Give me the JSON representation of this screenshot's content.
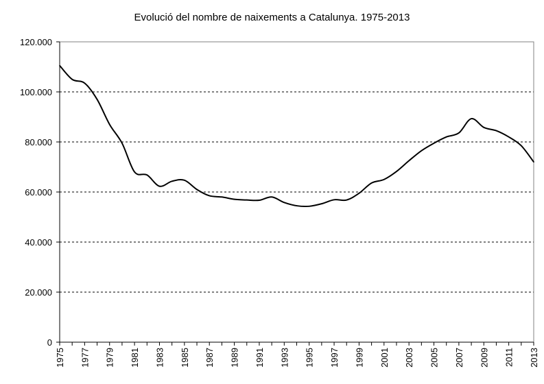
{
  "chart_data": {
    "type": "line",
    "title": "Evolució del nombre de naixements a Catalunya. 1975-2013",
    "xlabel": "",
    "ylabel": "",
    "ylim": [
      0,
      120000
    ],
    "y_ticks": [
      0,
      20000,
      40000,
      60000,
      80000,
      100000,
      120000
    ],
    "y_tick_labels": [
      "0",
      "20.000",
      "40.000",
      "60.000",
      "80.000",
      "100.000",
      "120.000"
    ],
    "x_tick_labels": [
      "1975",
      "1977",
      "1979",
      "1981",
      "1983",
      "1985",
      "1987",
      "1989",
      "1991",
      "1993",
      "1995",
      "1997",
      "1999",
      "2001",
      "2003",
      "2005",
      "2007",
      "2009",
      "2011",
      "2013"
    ],
    "grid": "horizontal dashed",
    "line_color": "#000000",
    "series": [
      {
        "x": [
          1975,
          1976,
          1977,
          1978,
          1979,
          1980,
          1981,
          1982,
          1983,
          1984,
          1985,
          1986,
          1987,
          1988,
          1989,
          1990,
          1991,
          1992,
          1993,
          1994,
          1995,
          1996,
          1997,
          1998,
          1999,
          2000,
          2001,
          2002,
          2003,
          2004,
          2005,
          2006,
          2007,
          2008,
          2009,
          2010,
          2011,
          2012,
          2013
        ],
        "values": [
          110500,
          105000,
          103500,
          97000,
          87000,
          79500,
          68000,
          66800,
          62300,
          64300,
          64700,
          61000,
          58500,
          58000,
          57100,
          56800,
          56700,
          58000,
          55800,
          54500,
          54300,
          55300,
          56900,
          56800,
          59500,
          63600,
          65000,
          68200,
          72500,
          76500,
          79500,
          82000,
          83600,
          89300,
          85800,
          84500,
          82000,
          78500,
          72000
        ]
      }
    ]
  }
}
